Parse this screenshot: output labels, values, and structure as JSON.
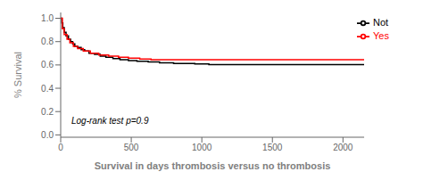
{
  "chart_data": {
    "type": "step",
    "xlabel": "Survival in days thrombosis versus no thrombosis",
    "ylabel": "% Survival",
    "annotation": "Log-rank test p=0.9",
    "xlim": [
      0,
      2150
    ],
    "ylim": [
      -0.02,
      1.05
    ],
    "xticks": [
      0,
      500,
      1000,
      1500,
      2000
    ],
    "yticks": [
      {
        "value": 0.0,
        "label": "0.0"
      },
      0.2,
      0.4,
      0.6,
      0.8,
      {
        "value": 1.0,
        "label": "1.0"
      }
    ],
    "legend": "upper right",
    "grid": false,
    "series": [
      {
        "name": "Not",
        "color": "black",
        "x": [
          0,
          8,
          15,
          25,
          38,
          55,
          70,
          85,
          100,
          120,
          145,
          170,
          200,
          240,
          280,
          320,
          370,
          420,
          480,
          540,
          620,
          700,
          800,
          950,
          1050,
          2150
        ],
        "values": [
          1.0,
          0.96,
          0.92,
          0.88,
          0.85,
          0.82,
          0.8,
          0.78,
          0.76,
          0.75,
          0.73,
          0.72,
          0.7,
          0.69,
          0.675,
          0.665,
          0.655,
          0.645,
          0.638,
          0.632,
          0.625,
          0.618,
          0.612,
          0.608,
          0.602,
          0.602
        ]
      },
      {
        "name": "Yes",
        "color": "red",
        "x": [
          0,
          12,
          25,
          45,
          65,
          90,
          120,
          160,
          210,
          270,
          340,
          410,
          480,
          560,
          640,
          2150
        ],
        "values": [
          1.0,
          0.91,
          0.86,
          0.82,
          0.79,
          0.76,
          0.74,
          0.72,
          0.7,
          0.685,
          0.675,
          0.665,
          0.658,
          0.651,
          0.645,
          0.645
        ]
      }
    ]
  }
}
